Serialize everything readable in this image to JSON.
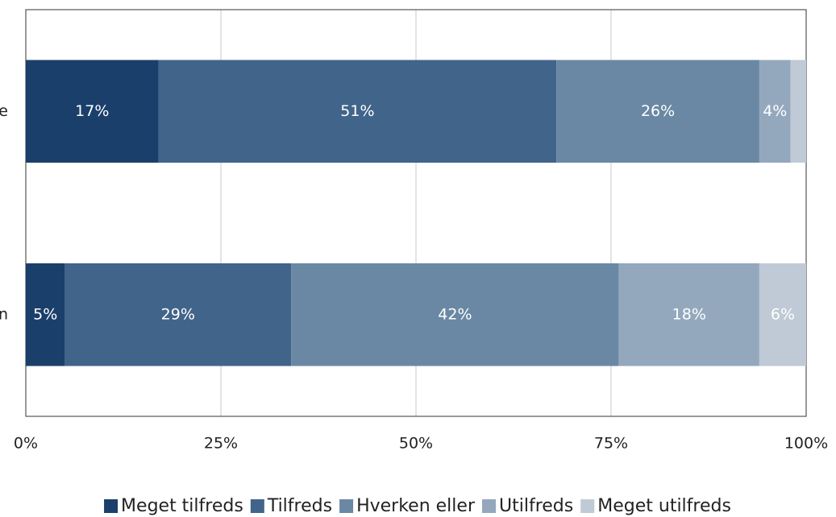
{
  "chart_data": {
    "type": "stacked-barh",
    "categories": [
      "e",
      "n"
    ],
    "series": [
      {
        "name": "Meget tilfreds",
        "color": "#1b3f6b",
        "values": [
          17,
          5
        ],
        "value_labels": [
          "17%",
          "5%"
        ]
      },
      {
        "name": "Tilfreds",
        "color": "#41648a",
        "values": [
          51,
          29
        ],
        "value_labels": [
          "51%",
          "29%"
        ]
      },
      {
        "name": "Hverken eller",
        "color": "#6a88a3",
        "values": [
          26,
          42
        ],
        "value_labels": [
          "26%",
          "42%"
        ]
      },
      {
        "name": "Utilfreds",
        "color": "#94a8bd",
        "values": [
          4,
          18
        ],
        "value_labels": [
          "4%",
          "18%"
        ]
      },
      {
        "name": "Meget utilfreds",
        "color": "#bfcad6",
        "values": [
          2,
          6
        ],
        "value_labels": [
          null,
          "6%"
        ]
      }
    ],
    "xlim": [
      0,
      100
    ],
    "xticks": [
      {
        "value": 0,
        "label": "0%"
      },
      {
        "value": 25,
        "label": "25%"
      },
      {
        "value": 50,
        "label": "50%"
      },
      {
        "value": 75,
        "label": "75%"
      },
      {
        "value": 100,
        "label": "100%"
      }
    ],
    "grid": true,
    "legend": "bottom"
  }
}
